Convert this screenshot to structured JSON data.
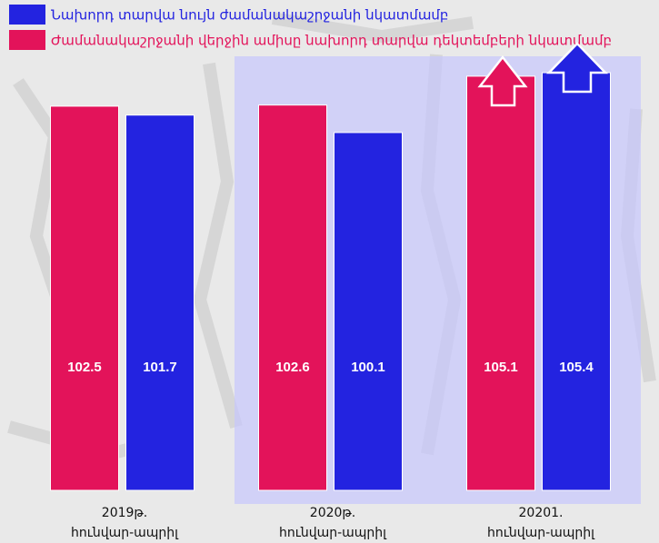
{
  "chart_data": {
    "type": "bar",
    "categories": [
      [
        "2019թ.",
        "հունվար-ապրիլ"
      ],
      [
        "2020թ.",
        "հունվար-ապրիլ"
      ],
      [
        "20201.",
        "հունվար-ապրիլ"
      ]
    ],
    "series": [
      {
        "name": "Ժամանակաշրջանի վերջին ամիսը նախորդ տարվա դեկտեմբերի նկատմամբ",
        "color": "#e3135a",
        "values": [
          102.5,
          102.6,
          105.1
        ]
      },
      {
        "name": "Նախորդ տարվա նույն ժամանակաշրջանի նկատմամբ",
        "color": "#2323e0",
        "values": [
          101.7,
          100.1,
          105.4
        ]
      }
    ]
  }
}
